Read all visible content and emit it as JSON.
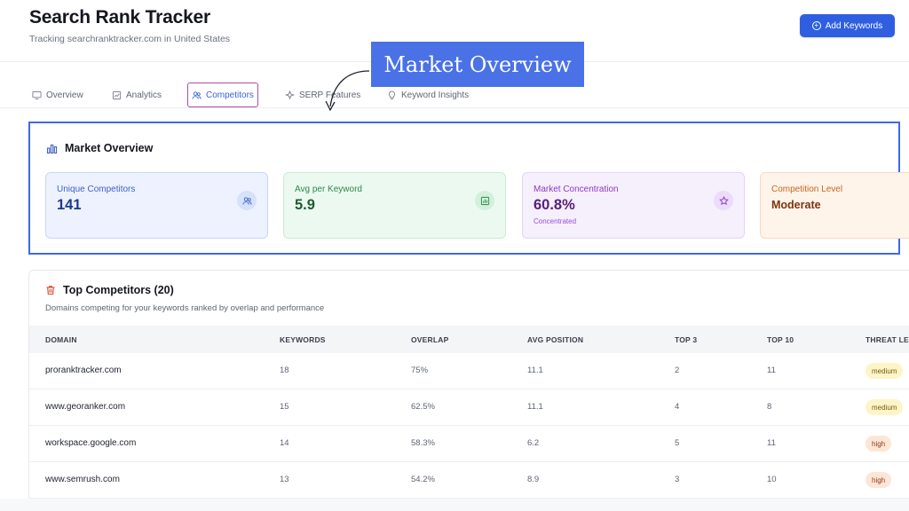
{
  "app": {
    "title": "Search Rank Tracker",
    "subtitle": "Tracking searchranktracker.com in United States",
    "add_button": "Add Keywords"
  },
  "tabs": [
    {
      "label": "Overview",
      "icon": "monitor-icon"
    },
    {
      "label": "Analytics",
      "icon": "chart-icon"
    },
    {
      "label": "Competitors",
      "icon": "users-icon",
      "active": true
    },
    {
      "label": "SERP Features",
      "icon": "sparkle-icon"
    },
    {
      "label": "Keyword Insights",
      "icon": "lightbulb-icon"
    }
  ],
  "callout": {
    "label": "Market Overview"
  },
  "market_overview": {
    "title": "Market Overview",
    "cards": [
      {
        "label": "Unique Competitors",
        "value": "141",
        "icon": "users-icon",
        "color": "#3d62c8"
      },
      {
        "label": "Avg per Keyword",
        "value": "5.9",
        "icon": "bar-chart-icon",
        "color": "#2c8a4a"
      },
      {
        "label": "Market Concentration",
        "value": "60.8%",
        "sub": "Concentrated",
        "icon": "star-icon",
        "color": "#8a3cc3"
      },
      {
        "label": "Competition Level",
        "value": "Moderate",
        "color": "#c4661d"
      }
    ]
  },
  "top_competitors": {
    "title": "Top Competitors (20)",
    "subtitle": "Domains competing for your keywords ranked by overlap and performance",
    "columns": [
      "DOMAIN",
      "KEYWORDS",
      "OVERLAP",
      "AVG POSITION",
      "TOP 3",
      "TOP 10",
      "THREAT LEV"
    ],
    "rows": [
      {
        "domain": "proranktracker.com",
        "keywords": "18",
        "overlap": "75%",
        "avg_position": "11.1",
        "top3": "2",
        "top10": "11",
        "threat": "medium"
      },
      {
        "domain": "www.georanker.com",
        "keywords": "15",
        "overlap": "62.5%",
        "avg_position": "11.1",
        "top3": "4",
        "top10": "8",
        "threat": "medium"
      },
      {
        "domain": "workspace.google.com",
        "keywords": "14",
        "overlap": "58.3%",
        "avg_position": "6.2",
        "top3": "5",
        "top10": "11",
        "threat": "high"
      },
      {
        "domain": "www.semrush.com",
        "keywords": "13",
        "overlap": "54.2%",
        "avg_position": "8.9",
        "top3": "3",
        "top10": "10",
        "threat": "high"
      }
    ]
  }
}
